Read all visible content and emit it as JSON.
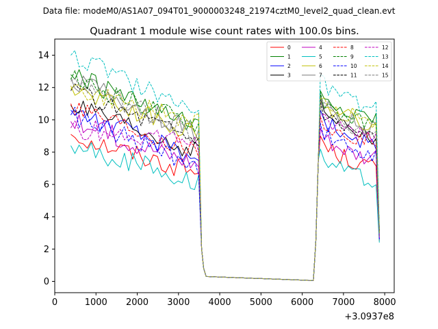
{
  "suptitle": "Data file: modeM0/AS1A07_094T01_9000003248_21974cztM0_level2_quad_clean.evt",
  "chart_data": {
    "type": "line",
    "title": "Quadrant 1 module wise count rates with 100.0s bins.",
    "xlabel": "",
    "ylabel": "",
    "x_offset_label": "+3.0937e8",
    "xlim": [
      0,
      8230
    ],
    "ylim": [
      -0.7,
      15
    ],
    "xticks": [
      0,
      1000,
      2000,
      3000,
      4000,
      5000,
      6000,
      7000,
      8000
    ],
    "yticks": [
      0,
      2,
      4,
      6,
      8,
      10,
      12,
      14
    ],
    "grid": false,
    "legend_position": "top-right",
    "series": [
      {
        "name": "0",
        "color": "#ff0000",
        "dash": "solid",
        "seg1_start": 9.1,
        "seg1_end": 6.7,
        "seg2_peak": 9.0,
        "seg2_end": 7.0,
        "end_value": 2.5
      },
      {
        "name": "1",
        "color": "#008000",
        "dash": "solid",
        "seg1_start": 12.8,
        "seg1_end": 9.4,
        "seg2_peak": 11.8,
        "seg2_end": 9.9,
        "end_value": 3.0
      },
      {
        "name": "2",
        "color": "#0000ff",
        "dash": "solid",
        "seg1_start": 10.6,
        "seg1_end": 7.6,
        "seg2_peak": 10.6,
        "seg2_end": 8.4,
        "end_value": 2.8
      },
      {
        "name": "3",
        "color": "#000000",
        "dash": "solid",
        "seg1_start": 10.9,
        "seg1_end": 7.9,
        "seg2_peak": 11.3,
        "seg2_end": 8.7,
        "end_value": 3.3
      },
      {
        "name": "4",
        "color": "#bf00bf",
        "dash": "solid",
        "seg1_start": 9.9,
        "seg1_end": 7.3,
        "seg2_peak": 9.5,
        "seg2_end": 7.6,
        "end_value": 2.6
      },
      {
        "name": "5",
        "color": "#00bfbf",
        "dash": "solid",
        "seg1_start": 8.4,
        "seg1_end": 6.2,
        "seg2_peak": 8.2,
        "seg2_end": 6.2,
        "end_value": 2.4
      },
      {
        "name": "6",
        "color": "#bfbf00",
        "dash": "solid",
        "seg1_start": 12.1,
        "seg1_end": 9.0,
        "seg2_peak": 11.5,
        "seg2_end": 9.6,
        "end_value": 3.0
      },
      {
        "name": "7",
        "color": "#808080",
        "dash": "solid",
        "seg1_start": 12.6,
        "seg1_end": 9.1,
        "seg2_peak": 11.6,
        "seg2_end": 9.3,
        "end_value": 3.0
      },
      {
        "name": "8",
        "color": "#ff0000",
        "dash": "dashed",
        "seg1_start": 11.0,
        "seg1_end": 8.1,
        "seg2_peak": 10.2,
        "seg2_end": 8.6,
        "end_value": 2.8
      },
      {
        "name": "9",
        "color": "#008000",
        "dash": "dashed",
        "seg1_start": 12.5,
        "seg1_end": 9.6,
        "seg2_peak": 11.7,
        "seg2_end": 9.5,
        "end_value": 3.1
      },
      {
        "name": "10",
        "color": "#0000ff",
        "dash": "dashed",
        "seg1_start": 10.3,
        "seg1_end": 7.1,
        "seg2_peak": 9.8,
        "seg2_end": 7.6,
        "end_value": 2.6
      },
      {
        "name": "11",
        "color": "#000000",
        "dash": "dashed",
        "seg1_start": 11.8,
        "seg1_end": 8.8,
        "seg2_peak": 11.1,
        "seg2_end": 8.9,
        "end_value": 3.1
      },
      {
        "name": "12",
        "color": "#bf00bf",
        "dash": "dashed",
        "seg1_start": 9.5,
        "seg1_end": 8.6,
        "seg2_peak": 10.2,
        "seg2_end": 9.0,
        "end_value": 2.7
      },
      {
        "name": "13",
        "color": "#00bfbf",
        "dash": "dashed",
        "seg1_start": 14.0,
        "seg1_end": 10.6,
        "seg2_peak": 12.8,
        "seg2_end": 10.6,
        "end_value": 3.3
      },
      {
        "name": "14",
        "color": "#bfbf00",
        "dash": "dashed",
        "seg1_start": 11.9,
        "seg1_end": 9.8,
        "seg2_peak": 11.3,
        "seg2_end": 10.0,
        "end_value": 3.0
      },
      {
        "name": "15",
        "color": "#808080",
        "dash": "dashed",
        "seg1_start": 12.4,
        "seg1_end": 9.0,
        "seg2_peak": 11.3,
        "seg2_end": 9.1,
        "end_value": 2.8
      }
    ],
    "timing": {
      "seg1_start_x": 390,
      "seg1_end_x": 3490,
      "drop_x": [
        3560,
        3610,
        3670
      ],
      "drop_values": [
        2.0,
        0.8,
        0.3
      ],
      "gap_value": 0.05,
      "gap_end_x": 6270,
      "rise_x": [
        6330,
        6390
      ],
      "rise_values": [
        2.5,
        7.5
      ],
      "seg2_peak_x": 6440,
      "seg2_end_x": 7790,
      "end_x": 7870,
      "bin_seconds": 100
    }
  }
}
